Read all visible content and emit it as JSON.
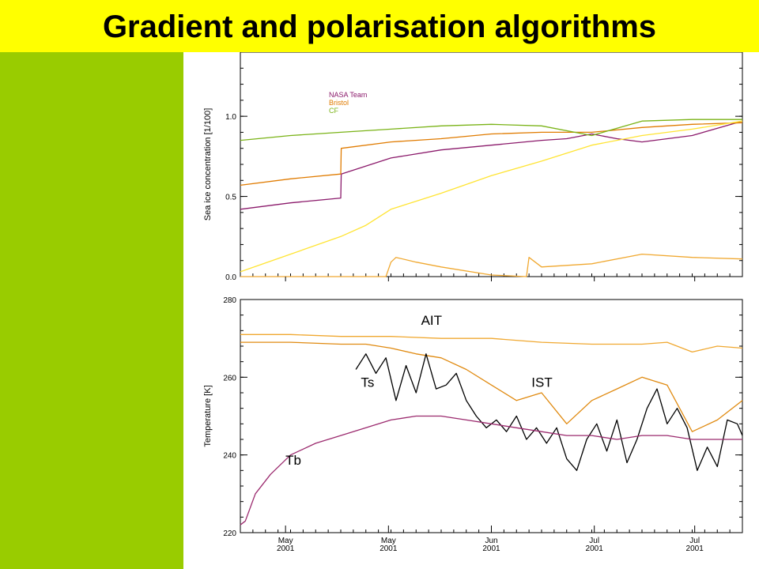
{
  "page": {
    "title": "Gradient and polarisation algorithms"
  },
  "colors": {
    "banner": "#ffff00",
    "sidebar": "#99cc00",
    "nasa_team": "#8b1a6b",
    "bristol": "#e07b00",
    "cf": "#7ab317",
    "yellow_line": "#ffe433",
    "ait": "#f0a830",
    "ist": "#e08a10",
    "ts": "#000000",
    "tb": "#9b2a6e"
  },
  "chart_data": [
    {
      "type": "line",
      "title": "",
      "xlabel": "",
      "ylabel": "Sea ice concentration [1/100]",
      "ylim": [
        0,
        1.4
      ],
      "yticks": [
        0.0,
        0.5,
        1.0
      ],
      "ytick_labels": [
        "0.0",
        "0.5",
        "1.0"
      ],
      "legend": {
        "placement": "top-left",
        "entries": [
          "NASA Team",
          "Bristol",
          "CF"
        ]
      },
      "x_domain": [
        0,
        100
      ],
      "series": [
        {
          "name": "NASA Team",
          "color": "#8b1a6b",
          "x": [
            0,
            10,
            20,
            20.1,
            30,
            40,
            50,
            60,
            65,
            70,
            75,
            80,
            90,
            100
          ],
          "values": [
            0.42,
            0.46,
            0.49,
            0.64,
            0.74,
            0.79,
            0.82,
            0.85,
            0.86,
            0.89,
            0.86,
            0.84,
            0.88,
            0.97
          ]
        },
        {
          "name": "Bristol",
          "color": "#e07b00",
          "x": [
            0,
            10,
            20,
            20.1,
            30,
            40,
            50,
            60,
            70,
            80,
            90,
            100
          ],
          "values": [
            0.57,
            0.61,
            0.64,
            0.8,
            0.84,
            0.86,
            0.89,
            0.9,
            0.9,
            0.93,
            0.95,
            0.96
          ]
        },
        {
          "name": "CF",
          "color": "#7ab317",
          "x": [
            0,
            10,
            20,
            30,
            40,
            50,
            60,
            70,
            80,
            90,
            100
          ],
          "values": [
            0.85,
            0.88,
            0.9,
            0.92,
            0.94,
            0.95,
            0.94,
            0.88,
            0.97,
            0.98,
            0.98
          ]
        },
        {
          "name": "",
          "color": "#ffe433",
          "x": [
            0,
            10,
            20,
            25,
            30,
            40,
            50,
            60,
            70,
            80,
            90,
            100
          ],
          "values": [
            0.03,
            0.14,
            0.25,
            0.32,
            0.42,
            0.52,
            0.63,
            0.72,
            0.82,
            0.88,
            0.92,
            0.97
          ]
        },
        {
          "name": "",
          "color": "#f0a830",
          "x": [
            0,
            29,
            30,
            31,
            35,
            40,
            50,
            57,
            57.5,
            60,
            70,
            80,
            90,
            100
          ],
          "values": [
            0.0,
            0.0,
            0.09,
            0.12,
            0.09,
            0.06,
            0.01,
            0.0,
            0.12,
            0.06,
            0.08,
            0.14,
            0.12,
            0.11
          ]
        }
      ]
    },
    {
      "type": "line",
      "title": "",
      "xlabel": "",
      "ylabel": "Temperature [K]",
      "ylim": [
        220,
        280
      ],
      "yticks": [
        220,
        240,
        260,
        280
      ],
      "ytick_labels": [
        "220",
        "240",
        "260",
        "280"
      ],
      "x_domain": [
        0,
        100
      ],
      "x_tick_positions": [
        9,
        29.5,
        50,
        70.5,
        90.5
      ],
      "x_tick_labels": [
        [
          "May",
          "2001"
        ],
        [
          "May",
          "2001"
        ],
        [
          "Jun",
          "2001"
        ],
        [
          "Jul",
          "2001"
        ],
        [
          "Jul",
          "2001"
        ]
      ],
      "series": [
        {
          "name": "AIT",
          "color": "#f0a830",
          "x": [
            0,
            10,
            20,
            30,
            40,
            50,
            60,
            70,
            80,
            85,
            90,
            95,
            100
          ],
          "values": [
            271,
            271,
            270.5,
            270.5,
            270,
            270,
            269,
            268.5,
            268.5,
            269,
            266.5,
            268,
            267.5
          ]
        },
        {
          "name": "IST",
          "color": "#e08a10",
          "x": [
            0,
            10,
            20,
            25,
            30,
            35,
            40,
            45,
            50,
            55,
            60,
            65,
            70,
            75,
            80,
            85,
            90,
            95,
            100
          ],
          "values": [
            269,
            269,
            268.5,
            268.5,
            267.5,
            266,
            265,
            262,
            258,
            254,
            256,
            248,
            254,
            257,
            260,
            258,
            246,
            249,
            254
          ]
        },
        {
          "name": "Ts",
          "color": "#000000",
          "x": [
            23,
            25,
            27,
            29,
            31,
            33,
            35,
            37,
            39,
            41,
            43,
            45,
            47,
            49,
            51,
            53,
            55,
            57,
            59,
            61,
            63,
            65,
            67,
            69,
            71,
            73,
            75,
            77,
            79,
            81,
            83,
            85,
            87,
            89,
            91,
            93,
            95,
            97,
            99,
            100
          ],
          "values": [
            262,
            266,
            261,
            265,
            254,
            263,
            256,
            266,
            257,
            258,
            261,
            254,
            250,
            247,
            249,
            246,
            250,
            244,
            247,
            243,
            247,
            239,
            236,
            244,
            248,
            241,
            249,
            238,
            244,
            252,
            257,
            248,
            252,
            247,
            236,
            242,
            237,
            249,
            248,
            245
          ]
        },
        {
          "name": "Tb",
          "color": "#9b2a6e",
          "x": [
            0,
            1,
            3,
            6,
            10,
            15,
            20,
            25,
            30,
            35,
            40,
            45,
            50,
            55,
            60,
            65,
            70,
            75,
            80,
            85,
            90,
            95,
            100
          ],
          "values": [
            222,
            223,
            230,
            235,
            240,
            243,
            245,
            247,
            249,
            250,
            250,
            249,
            248,
            247,
            246,
            245,
            245,
            244,
            245,
            245,
            244,
            244,
            244
          ]
        }
      ],
      "annotations": [
        {
          "text": "AIT",
          "x": 36,
          "y": 273.5
        },
        {
          "text": "Ts",
          "x": 24,
          "y": 257.5
        },
        {
          "text": "IST",
          "x": 58,
          "y": 257.5
        },
        {
          "text": "Tb",
          "x": 9,
          "y": 237.5
        }
      ]
    }
  ]
}
